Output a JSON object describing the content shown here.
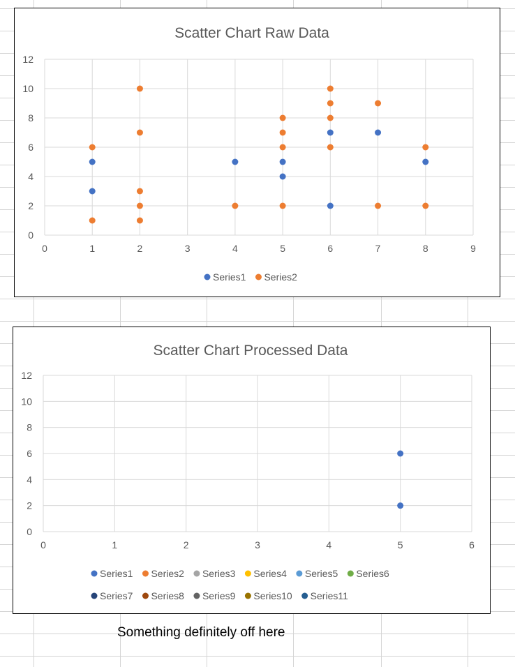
{
  "sheet": {
    "gridline_color": "#d4d4d4"
  },
  "note": "Something definitely off here",
  "chart_data": [
    {
      "type": "scatter",
      "title": "Scatter Chart Raw Data",
      "xlim": [
        0,
        9
      ],
      "ylim": [
        0,
        12
      ],
      "x_ticks": [
        0,
        1,
        2,
        3,
        4,
        5,
        6,
        7,
        8,
        9
      ],
      "y_ticks": [
        0,
        2,
        4,
        6,
        8,
        10,
        12
      ],
      "grid": true,
      "legend_position": "bottom",
      "series": [
        {
          "name": "Series1",
          "color": "#4472c4",
          "points": [
            [
              1,
              5
            ],
            [
              1,
              3
            ],
            [
              4,
              5
            ],
            [
              5,
              5
            ],
            [
              5,
              4
            ],
            [
              6,
              7
            ],
            [
              6,
              2
            ],
            [
              7,
              7
            ],
            [
              8,
              5
            ]
          ]
        },
        {
          "name": "Series2",
          "color": "#ed7d31",
          "points": [
            [
              1,
              6
            ],
            [
              1,
              1
            ],
            [
              2,
              10
            ],
            [
              2,
              7
            ],
            [
              2,
              3
            ],
            [
              2,
              2
            ],
            [
              2,
              1
            ],
            [
              4,
              2
            ],
            [
              5,
              8
            ],
            [
              5,
              7
            ],
            [
              5,
              6
            ],
            [
              5,
              2
            ],
            [
              6,
              10
            ],
            [
              6,
              9
            ],
            [
              6,
              8
            ],
            [
              6,
              6
            ],
            [
              7,
              9
            ],
            [
              7,
              2
            ],
            [
              8,
              6
            ],
            [
              8,
              2
            ]
          ]
        }
      ]
    },
    {
      "type": "scatter",
      "title": "Scatter Chart Processed Data",
      "xlim": [
        0,
        6
      ],
      "ylim": [
        0,
        12
      ],
      "x_ticks": [
        0,
        1,
        2,
        3,
        4,
        5,
        6
      ],
      "y_ticks": [
        0,
        2,
        4,
        6,
        8,
        10,
        12
      ],
      "grid": true,
      "legend_position": "bottom",
      "series": [
        {
          "name": "Series1",
          "color": "#4472c4",
          "points": [
            [
              5,
              6
            ],
            [
              5,
              2
            ]
          ]
        },
        {
          "name": "Series2",
          "color": "#ed7d31",
          "points": []
        },
        {
          "name": "Series3",
          "color": "#a5a5a5",
          "points": []
        },
        {
          "name": "Series4",
          "color": "#ffc000",
          "points": []
        },
        {
          "name": "Series5",
          "color": "#5b9bd5",
          "points": []
        },
        {
          "name": "Series6",
          "color": "#70ad47",
          "points": []
        },
        {
          "name": "Series7",
          "color": "#264478",
          "points": []
        },
        {
          "name": "Series8",
          "color": "#9e480e",
          "points": []
        },
        {
          "name": "Series9",
          "color": "#636363",
          "points": []
        },
        {
          "name": "Series10",
          "color": "#997300",
          "points": []
        },
        {
          "name": "Series11",
          "color": "#255e91",
          "points": []
        }
      ]
    }
  ]
}
